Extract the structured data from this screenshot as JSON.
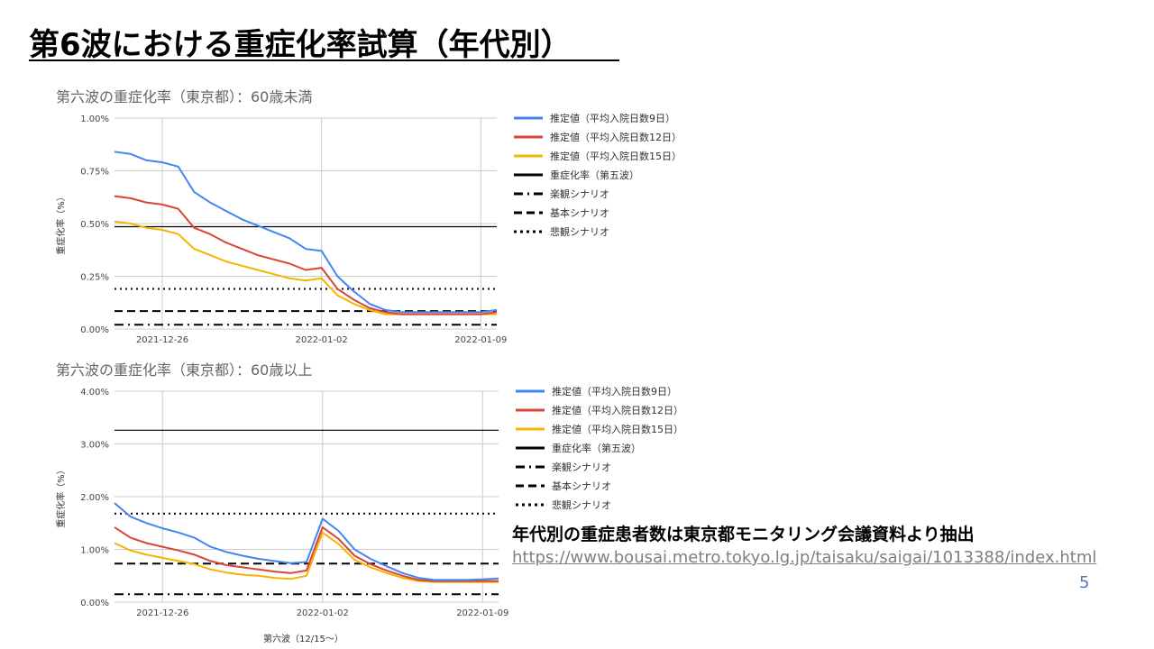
{
  "slide": {
    "title": "第6波における重症化率試算（年代別）",
    "note": "年代別の重症患者数は東京都モニタリング会議資料より抽出",
    "url": "https://www.bousai.metro.tokyo.lg.jp/taisaku/saigai/1013388/index.html",
    "page_number": "5"
  },
  "colors": {
    "blue": "#4285f4",
    "red": "#db4437",
    "yellow": "#f4b400",
    "black": "#000000",
    "grid": "#cccccc",
    "axis_text": "#444444"
  },
  "chart_data": [
    {
      "type": "line",
      "title": "第六波の重症化率（東京都）：60歳未満",
      "ylabel": "重症化率（%）",
      "xlabel": "",
      "xlim": [
        0,
        24
      ],
      "ylim": [
        0,
        1.0
      ],
      "yticks": [
        "0.00%",
        "0.25%",
        "0.50%",
        "0.75%",
        "1.00%"
      ],
      "ytick_values": [
        0,
        0.25,
        0.5,
        0.75,
        1.0
      ],
      "xticks": [
        "2021-12-26",
        "2022-01-02",
        "2022-01-09"
      ],
      "xtick_values": [
        3,
        13,
        23
      ],
      "legend_position": "right",
      "series": [
        {
          "name": "推定値（平均入院日数9日）",
          "color": "#4285f4",
          "dash": "solid",
          "x": [
            0,
            1,
            2,
            3,
            4,
            5,
            6,
            7,
            8,
            9,
            10,
            11,
            12,
            13,
            14,
            15,
            16,
            17,
            18,
            19,
            20,
            21,
            22,
            23,
            24
          ],
          "y": [
            0.84,
            0.83,
            0.8,
            0.79,
            0.77,
            0.65,
            0.6,
            0.56,
            0.52,
            0.49,
            0.46,
            0.43,
            0.38,
            0.37,
            0.25,
            0.18,
            0.12,
            0.09,
            0.08,
            0.08,
            0.08,
            0.08,
            0.08,
            0.08,
            0.09
          ]
        },
        {
          "name": "推定値（平均入院日数12日）",
          "color": "#db4437",
          "dash": "solid",
          "x": [
            0,
            1,
            2,
            3,
            4,
            5,
            6,
            7,
            8,
            9,
            10,
            11,
            12,
            13,
            14,
            15,
            16,
            17,
            18,
            19,
            20,
            21,
            22,
            23,
            24
          ],
          "y": [
            0.63,
            0.62,
            0.6,
            0.59,
            0.57,
            0.48,
            0.45,
            0.41,
            0.38,
            0.35,
            0.33,
            0.31,
            0.28,
            0.29,
            0.19,
            0.14,
            0.1,
            0.08,
            0.07,
            0.07,
            0.07,
            0.07,
            0.07,
            0.07,
            0.08
          ]
        },
        {
          "name": "推定値（平均入院日数15日）",
          "color": "#f4b400",
          "dash": "solid",
          "x": [
            0,
            1,
            2,
            3,
            4,
            5,
            6,
            7,
            8,
            9,
            10,
            11,
            12,
            13,
            14,
            15,
            16,
            17,
            18,
            19,
            20,
            21,
            22,
            23,
            24
          ],
          "y": [
            0.51,
            0.5,
            0.48,
            0.47,
            0.45,
            0.38,
            0.35,
            0.32,
            0.3,
            0.28,
            0.26,
            0.24,
            0.23,
            0.24,
            0.16,
            0.12,
            0.09,
            0.07,
            0.07,
            0.07,
            0.07,
            0.07,
            0.07,
            0.07,
            0.07
          ]
        },
        {
          "name": "重症化率（第五波）",
          "color": "#000000",
          "dash": "solid",
          "x": [
            0,
            24
          ],
          "y": [
            0.485,
            0.485
          ]
        },
        {
          "name": "楽観シナリオ",
          "color": "#000000",
          "dash": "dashdot",
          "x": [
            0,
            24
          ],
          "y": [
            0.02,
            0.02
          ]
        },
        {
          "name": "基本シナリオ",
          "color": "#000000",
          "dash": "dash",
          "x": [
            0,
            24
          ],
          "y": [
            0.085,
            0.085
          ]
        },
        {
          "name": "悲観シナリオ",
          "color": "#000000",
          "dash": "dot",
          "x": [
            0,
            24
          ],
          "y": [
            0.19,
            0.19
          ]
        }
      ]
    },
    {
      "type": "line",
      "title": "第六波の重症化率（東京都）：60歳以上",
      "ylabel": "重症化率（%）",
      "xlabel": "第六波（12/15～）",
      "xlim": [
        0,
        24
      ],
      "ylim": [
        0,
        4.0
      ],
      "yticks": [
        "0.00%",
        "1.00%",
        "2.00%",
        "3.00%",
        "4.00%"
      ],
      "ytick_values": [
        0,
        1,
        2,
        3,
        4
      ],
      "xticks": [
        "2021-12-26",
        "2022-01-02",
        "2022-01-09"
      ],
      "xtick_values": [
        3,
        13,
        23
      ],
      "legend_position": "right",
      "series": [
        {
          "name": "推定値（平均入院日数9日）",
          "color": "#4285f4",
          "dash": "solid",
          "x": [
            0,
            1,
            2,
            3,
            4,
            5,
            6,
            7,
            8,
            9,
            10,
            11,
            12,
            13,
            14,
            15,
            16,
            17,
            18,
            19,
            20,
            21,
            22,
            23,
            24
          ],
          "y": [
            1.88,
            1.62,
            1.5,
            1.4,
            1.32,
            1.22,
            1.05,
            0.95,
            0.88,
            0.82,
            0.78,
            0.74,
            0.76,
            1.58,
            1.35,
            1.0,
            0.82,
            0.68,
            0.55,
            0.46,
            0.42,
            0.42,
            0.42,
            0.43,
            0.45
          ]
        },
        {
          "name": "推定値（平均入院日数12日）",
          "color": "#db4437",
          "dash": "solid",
          "x": [
            0,
            1,
            2,
            3,
            4,
            5,
            6,
            7,
            8,
            9,
            10,
            11,
            12,
            13,
            14,
            15,
            16,
            17,
            18,
            19,
            20,
            21,
            22,
            23,
            24
          ],
          "y": [
            1.42,
            1.22,
            1.12,
            1.05,
            0.98,
            0.9,
            0.78,
            0.7,
            0.66,
            0.62,
            0.58,
            0.55,
            0.6,
            1.42,
            1.2,
            0.88,
            0.72,
            0.6,
            0.5,
            0.42,
            0.4,
            0.4,
            0.4,
            0.4,
            0.4
          ]
        },
        {
          "name": "推定値（平均入院日数15日）",
          "color": "#f4b400",
          "dash": "solid",
          "x": [
            0,
            1,
            2,
            3,
            4,
            5,
            6,
            7,
            8,
            9,
            10,
            11,
            12,
            13,
            14,
            15,
            16,
            17,
            18,
            19,
            20,
            21,
            22,
            23,
            24
          ],
          "y": [
            1.12,
            0.98,
            0.9,
            0.84,
            0.78,
            0.72,
            0.62,
            0.56,
            0.52,
            0.5,
            0.46,
            0.44,
            0.5,
            1.32,
            1.1,
            0.8,
            0.66,
            0.55,
            0.46,
            0.4,
            0.38,
            0.38,
            0.38,
            0.38,
            0.38
          ]
        },
        {
          "name": "重症化率（第五波）",
          "color": "#000000",
          "dash": "solid",
          "x": [
            0,
            24
          ],
          "y": [
            3.26,
            3.26
          ]
        },
        {
          "name": "楽観シナリオ",
          "color": "#000000",
          "dash": "dashdot",
          "x": [
            0,
            24
          ],
          "y": [
            0.15,
            0.15
          ]
        },
        {
          "name": "基本シナリオ",
          "color": "#000000",
          "dash": "dash",
          "x": [
            0,
            24
          ],
          "y": [
            0.73,
            0.73
          ]
        },
        {
          "name": "悲観シナリオ",
          "color": "#000000",
          "dash": "dot",
          "x": [
            0,
            24
          ],
          "y": [
            1.68,
            1.68
          ]
        }
      ]
    }
  ]
}
